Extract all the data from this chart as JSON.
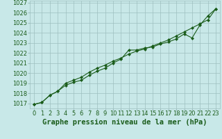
{
  "title": "Graphe pression niveau de la mer (hPa)",
  "x_labels": [
    "0",
    "1",
    "2",
    "3",
    "4",
    "5",
    "6",
    "7",
    "8",
    "9",
    "10",
    "11",
    "12",
    "13",
    "14",
    "15",
    "16",
    "17",
    "18",
    "19",
    "20",
    "21",
    "22",
    "23"
  ],
  "xlim": [
    -0.5,
    23.5
  ],
  "ylim": [
    1016.5,
    1027.2
  ],
  "yticks": [
    1017,
    1018,
    1019,
    1020,
    1021,
    1022,
    1023,
    1024,
    1025,
    1026,
    1027
  ],
  "line1_x": [
    0,
    1,
    2,
    3,
    4,
    5,
    6,
    7,
    8,
    9,
    10,
    11,
    12,
    13,
    14,
    15,
    16,
    17,
    18,
    19,
    20,
    21,
    22,
    23
  ],
  "line1_y": [
    1016.9,
    1017.1,
    1017.8,
    1018.2,
    1018.8,
    1019.1,
    1019.3,
    1019.8,
    1020.2,
    1020.5,
    1021.0,
    1021.4,
    1022.3,
    1022.3,
    1022.5,
    1022.6,
    1022.9,
    1023.1,
    1023.4,
    1023.9,
    1023.5,
    1024.8,
    1025.7,
    1026.4
  ],
  "line2_x": [
    0,
    1,
    2,
    3,
    4,
    5,
    6,
    7,
    8,
    9,
    10,
    11,
    12,
    13,
    14,
    15,
    16,
    17,
    18,
    19,
    20,
    21,
    22,
    23
  ],
  "line2_y": [
    1016.9,
    1017.1,
    1017.8,
    1018.2,
    1019.0,
    1019.3,
    1019.6,
    1020.1,
    1020.5,
    1020.8,
    1021.2,
    1021.5,
    1021.9,
    1022.2,
    1022.4,
    1022.7,
    1023.0,
    1023.3,
    1023.7,
    1024.1,
    1024.5,
    1024.9,
    1025.3,
    1026.4
  ],
  "line_color": "#1a5c1a",
  "bg_color": "#c8e8e8",
  "grid_color": "#9dbfbf",
  "marker": "D",
  "marker_size": 2.0,
  "title_fontsize": 7.5,
  "tick_fontsize": 6.0
}
